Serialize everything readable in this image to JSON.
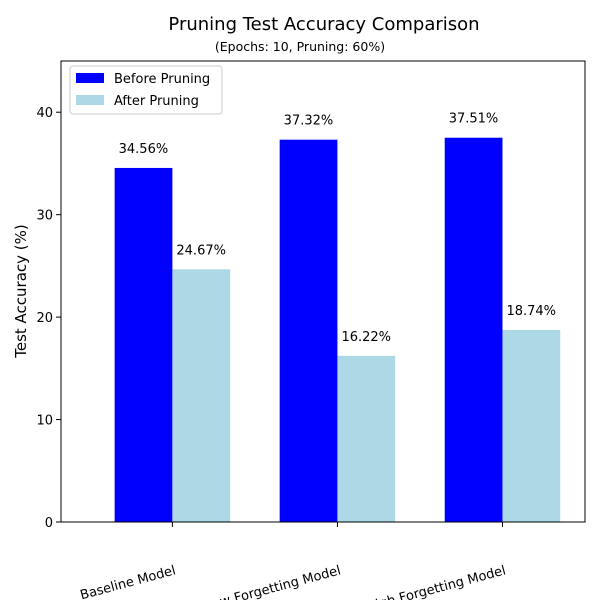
{
  "chart_data": {
    "type": "bar",
    "title": "Pruning Test Accuracy Comparison",
    "subtitle": "(Epochs: 10, Pruning: 60%)",
    "xlabel": "",
    "ylabel": "Test Accuracy (%)",
    "ylim": [
      0,
      45
    ],
    "yticks": [
      0,
      10,
      20,
      30,
      40
    ],
    "categories": [
      "Baseline Model",
      "Low Forgetting Model",
      "High Forgetting Model"
    ],
    "series": [
      {
        "name": "Before Pruning",
        "color": "#0000ff",
        "values": [
          34.56,
          37.32,
          37.51
        ],
        "labels": [
          "34.56%",
          "37.32%",
          "37.51%"
        ]
      },
      {
        "name": "After Pruning",
        "color": "#add8e6",
        "values": [
          24.67,
          16.22,
          18.74
        ],
        "labels": [
          "24.67%",
          "16.22%",
          "18.74%"
        ]
      }
    ],
    "legend": "top-left",
    "grid": false,
    "xtick_rotation": 15
  }
}
